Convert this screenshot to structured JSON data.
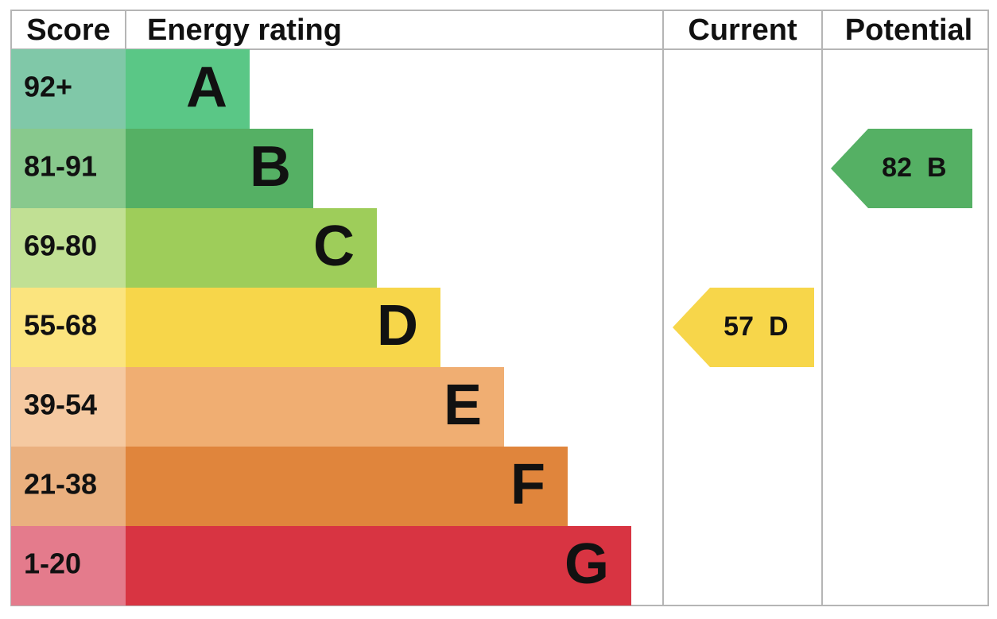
{
  "header": {
    "score": "Score",
    "rating": "Energy rating",
    "current": "Current",
    "potential": "Potential"
  },
  "bands": [
    {
      "score": "92+",
      "letter": "A",
      "color": "#5ac786",
      "score_color": "#80c8a8"
    },
    {
      "score": "81-91",
      "letter": "B",
      "color": "#55b064",
      "score_color": "#88c98d"
    },
    {
      "score": "69-80",
      "letter": "C",
      "color": "#9ecd5a",
      "score_color": "#c1e094"
    },
    {
      "score": "55-68",
      "letter": "D",
      "color": "#f7d64a",
      "score_color": "#fbe47e"
    },
    {
      "score": "39-54",
      "letter": "E",
      "color": "#f0ae72",
      "score_color": "#f5c9a1"
    },
    {
      "score": "21-38",
      "letter": "F",
      "color": "#e0853c",
      "score_color": "#eab07f"
    },
    {
      "score": "1-20",
      "letter": "G",
      "color": "#d83442",
      "score_color": "#e47b8c"
    }
  ],
  "current": {
    "value": 57,
    "letter": "D"
  },
  "potential": {
    "value": 82,
    "letter": "B"
  }
}
